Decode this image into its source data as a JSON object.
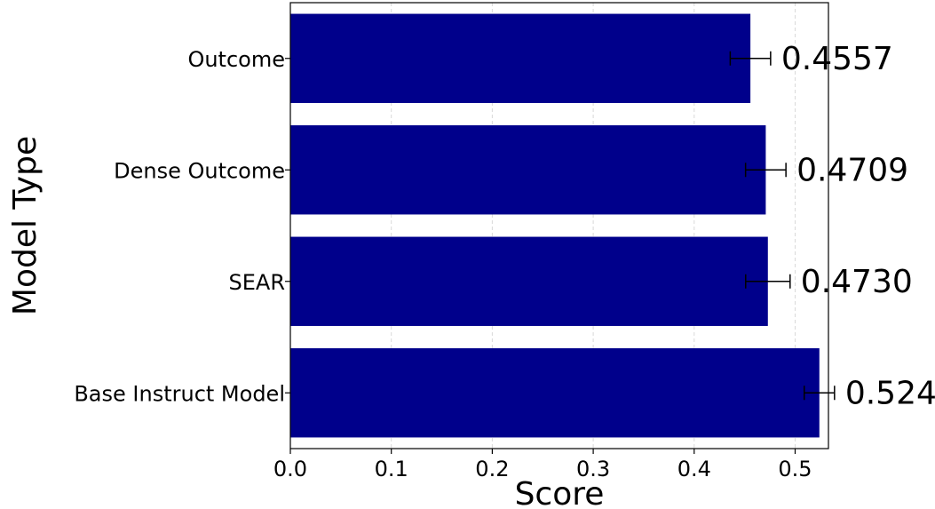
{
  "chart_data": {
    "type": "bar",
    "orientation": "horizontal",
    "categories": [
      "Outcome",
      "Dense Outcome",
      "SEAR",
      "Base Instruct Model"
    ],
    "values": [
      0.4557,
      0.4709,
      0.473,
      0.524
    ],
    "value_labels": [
      "0.4557",
      "0.4709",
      "0.4730",
      "0.5240"
    ],
    "error": [
      0.02,
      0.02,
      0.022,
      0.015
    ],
    "xlabel": "Score",
    "ylabel": "Model Type",
    "xlim": [
      0.0,
      0.533
    ],
    "xticks": [
      0.0,
      0.1,
      0.2,
      0.3,
      0.4,
      0.5
    ],
    "xtick_labels": [
      "0.0",
      "0.1",
      "0.2",
      "0.3",
      "0.4",
      "0.5"
    ],
    "grid": "x",
    "bar_color": "#00008b",
    "grid_color": "#d9d9d9"
  }
}
